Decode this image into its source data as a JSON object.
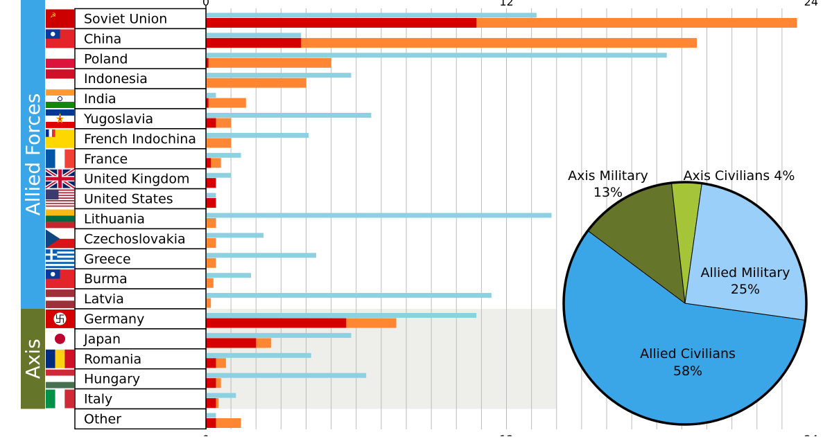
{
  "chart_data": [
    {
      "type": "bar",
      "orientation": "horizontal",
      "x_axis": {
        "ticks": [
          "0",
          "12",
          "24"
        ],
        "range": [
          0,
          24
        ]
      },
      "groups": [
        {
          "label": "Allied Forces",
          "color": "#3aa6e8"
        },
        {
          "label": "Axis",
          "color": "#65752a"
        }
      ],
      "bar_colors": {
        "length_bar": "#8dd0e2",
        "military": "#d40000",
        "total": "#ff8633"
      },
      "categories": [
        {
          "name": "Soviet Union",
          "group": "Allied Forces",
          "flag": "soviet-flag",
          "length_value": 13.2,
          "military": 10.8,
          "total": 23.6
        },
        {
          "name": "China",
          "group": "Allied Forces",
          "flag": "china-flag",
          "length_value": 3.8,
          "military": 3.8,
          "total": 19.6
        },
        {
          "name": "Poland",
          "group": "Allied Forces",
          "flag": "poland-flag",
          "length_value": 18.4,
          "military": 0.1,
          "total": 5.0
        },
        {
          "name": "Indonesia",
          "group": "Allied Forces",
          "flag": "indonesia-flag",
          "length_value": 5.8,
          "military": 0.0,
          "total": 4.0
        },
        {
          "name": "India",
          "group": "Allied Forces",
          "flag": "india-flag",
          "length_value": 0.4,
          "military": 0.1,
          "total": 1.6
        },
        {
          "name": "Yugoslavia",
          "group": "Allied Forces",
          "flag": "yugoslavia-flag",
          "length_value": 6.6,
          "military": 0.4,
          "total": 1.0
        },
        {
          "name": "French Indochina",
          "group": "Allied Forces",
          "flag": "french-indochina-flag",
          "length_value": 4.1,
          "military": 0.0,
          "total": 1.0
        },
        {
          "name": "France",
          "group": "Allied Forces",
          "flag": "france-flag",
          "length_value": 1.4,
          "military": 0.2,
          "total": 0.6
        },
        {
          "name": "United Kingdom",
          "group": "Allied Forces",
          "flag": "uk-flag",
          "length_value": 1.0,
          "military": 0.4,
          "total": 0.4
        },
        {
          "name": "United States",
          "group": "Allied Forces",
          "flag": "us-flag",
          "length_value": 0.4,
          "military": 0.4,
          "total": 0.4
        },
        {
          "name": "Lithuania",
          "group": "Allied Forces",
          "flag": "lithuania-flag",
          "length_value": 13.8,
          "military": 0.0,
          "total": 0.4
        },
        {
          "name": "Czechoslovakia",
          "group": "Allied Forces",
          "flag": "czechoslovakia-flag",
          "length_value": 2.3,
          "military": 0.0,
          "total": 0.4
        },
        {
          "name": "Greece",
          "group": "Allied Forces",
          "flag": "greece-flag",
          "length_value": 4.4,
          "military": 0.0,
          "total": 0.4
        },
        {
          "name": "Burma",
          "group": "Allied Forces",
          "flag": "burma-flag",
          "length_value": 1.8,
          "military": 0.0,
          "total": 0.3
        },
        {
          "name": "Latvia",
          "group": "Allied Forces",
          "flag": "latvia-flag",
          "length_value": 11.4,
          "military": 0.0,
          "total": 0.2
        },
        {
          "name": "Germany",
          "group": "Axis",
          "flag": "germany-flag",
          "length_value": 10.8,
          "military": 5.6,
          "total": 7.6
        },
        {
          "name": "Japan",
          "group": "Axis",
          "flag": "japan-flag",
          "length_value": 5.8,
          "military": 2.0,
          "total": 2.6
        },
        {
          "name": "Romania",
          "group": "Axis",
          "flag": "romania-flag",
          "length_value": 4.2,
          "military": 0.4,
          "total": 0.8
        },
        {
          "name": "Hungary",
          "group": "Axis",
          "flag": "hungary-flag",
          "length_value": 6.4,
          "military": 0.4,
          "total": 0.6
        },
        {
          "name": "Italy",
          "group": "Axis",
          "flag": "italy-flag",
          "length_value": 1.2,
          "military": 0.4,
          "total": 0.5
        },
        {
          "name": "Other",
          "group": "",
          "flag": "",
          "length_value": 0.4,
          "military": 0.4,
          "total": 1.4
        }
      ]
    },
    {
      "type": "pie",
      "slices": [
        {
          "label": "Allied Civilians",
          "value": 58,
          "text": "58%",
          "color": "#3aa6e8"
        },
        {
          "label": "Axis Military",
          "value": 13,
          "text": "13%",
          "color": "#65752a"
        },
        {
          "label": "Axis Civilians",
          "value": 4,
          "text": "4%",
          "color": "#a6c437"
        },
        {
          "label": "Allied Military",
          "value": 25,
          "text": "25%",
          "color": "#99cff8"
        }
      ]
    }
  ]
}
